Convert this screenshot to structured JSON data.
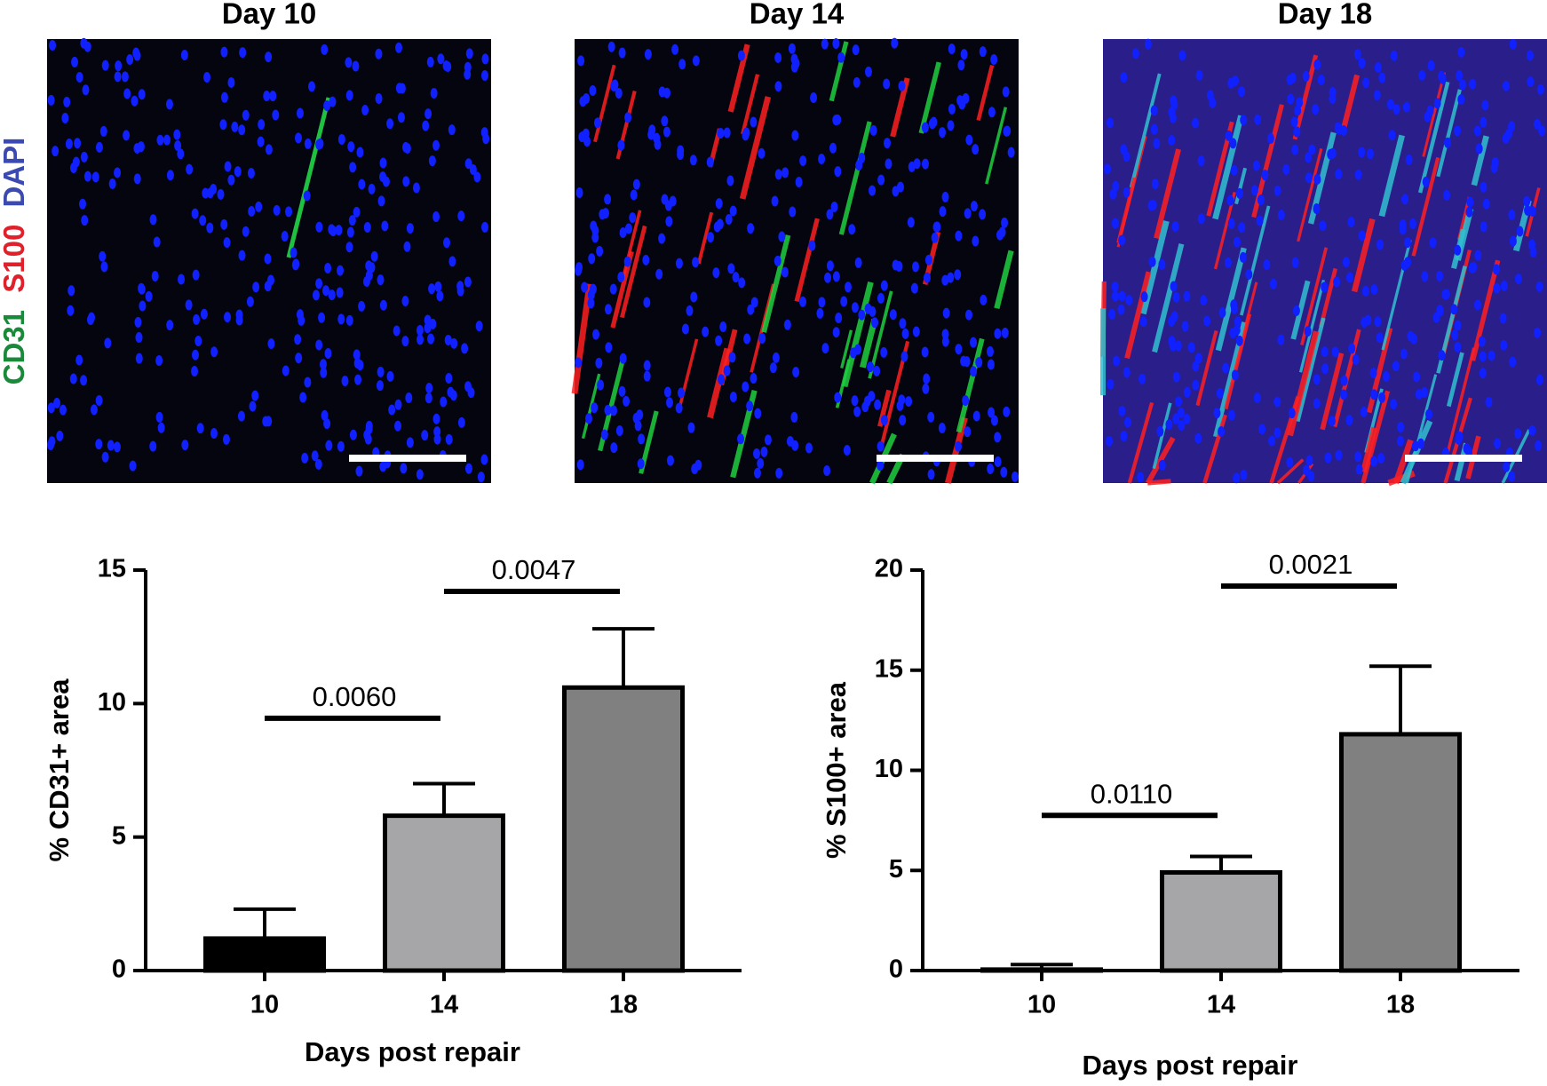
{
  "panels": {
    "titles": [
      "Day 10",
      "Day 14",
      "Day 18"
    ],
    "stains": [
      "CD31",
      "S100",
      "DAPI"
    ]
  },
  "chart_data": [
    {
      "type": "bar",
      "y_label": "% CD31+ area",
      "x_label": "Days post repair",
      "categories": [
        "10",
        "14",
        "18"
      ],
      "values": [
        1.2,
        5.8,
        10.6
      ],
      "errors": [
        1.1,
        1.2,
        2.2
      ],
      "colors": [
        "#000000",
        "#a6a6a8",
        "#808080"
      ],
      "ylim": [
        0,
        15
      ],
      "yticks": [
        0,
        5,
        10,
        15
      ],
      "annotations": [
        "0.0060",
        "0.0047"
      ]
    },
    {
      "type": "bar",
      "y_label": "% S100+ area",
      "x_label": "Days post repair",
      "categories": [
        "10",
        "14",
        "18"
      ],
      "values": [
        0.05,
        4.9,
        11.8
      ],
      "errors": [
        0.25,
        0.8,
        3.4
      ],
      "colors": [
        "#000000",
        "#a6a6a8",
        "#808080"
      ],
      "ylim": [
        0,
        20
      ],
      "yticks": [
        0,
        5,
        10,
        15,
        20
      ],
      "annotations": [
        "0.0110",
        "0.0021"
      ]
    }
  ]
}
